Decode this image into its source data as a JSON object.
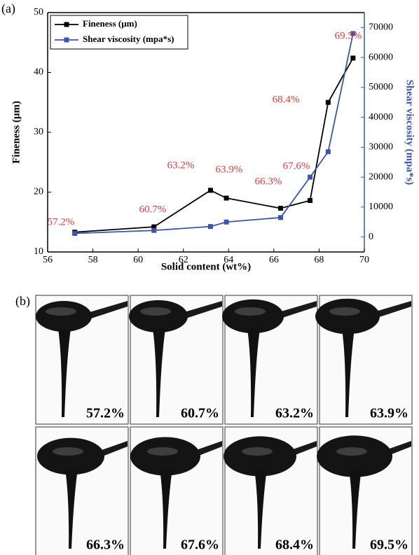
{
  "chart_data": {
    "type": "line",
    "panel_label": "(a)",
    "x_label": "Solid content (wt%)",
    "y_label": "Fineness (μm)",
    "y2_label": "Shear viscosity (mpa*s)",
    "x": [
      57.2,
      60.7,
      63.2,
      63.9,
      66.3,
      67.6,
      68.4,
      69.5
    ],
    "annotations": [
      "57.2%",
      "60.7%",
      "63.2%",
      "63.9%",
      "66.3%",
      "67.6%",
      "68.4%",
      "69.5%"
    ],
    "annotation_color": "#e8383d",
    "series": [
      {
        "name": "Fineness (μm)",
        "color": "#000000",
        "values": [
          13.3,
          14.2,
          20.3,
          19.0,
          17.3,
          18.6,
          35.0,
          42.4
        ]
      },
      {
        "name": "Shear viscosity (mpa*s)",
        "color": "#3b55a8",
        "axis": "y2",
        "values": [
          1200,
          2200,
          3500,
          5000,
          6500,
          20000,
          28500,
          68000
        ]
      }
    ],
    "xlim": [
      56,
      70
    ],
    "xticks": [
      56,
      58,
      60,
      62,
      64,
      66,
      68,
      70
    ],
    "ylim": [
      10,
      50
    ],
    "yticks": [
      10,
      20,
      30,
      40,
      50
    ],
    "y2lim": [
      -5000,
      75000
    ],
    "y2ticks": [
      0,
      10000,
      20000,
      30000,
      40000,
      50000,
      60000,
      70000
    ],
    "legend": "upper-left"
  },
  "panel_b": {
    "label": "(b)",
    "captions": [
      "57.2%",
      "60.7%",
      "63.2%",
      "63.9%",
      "66.3%",
      "67.6%",
      "68.4%",
      "69.5%"
    ]
  }
}
